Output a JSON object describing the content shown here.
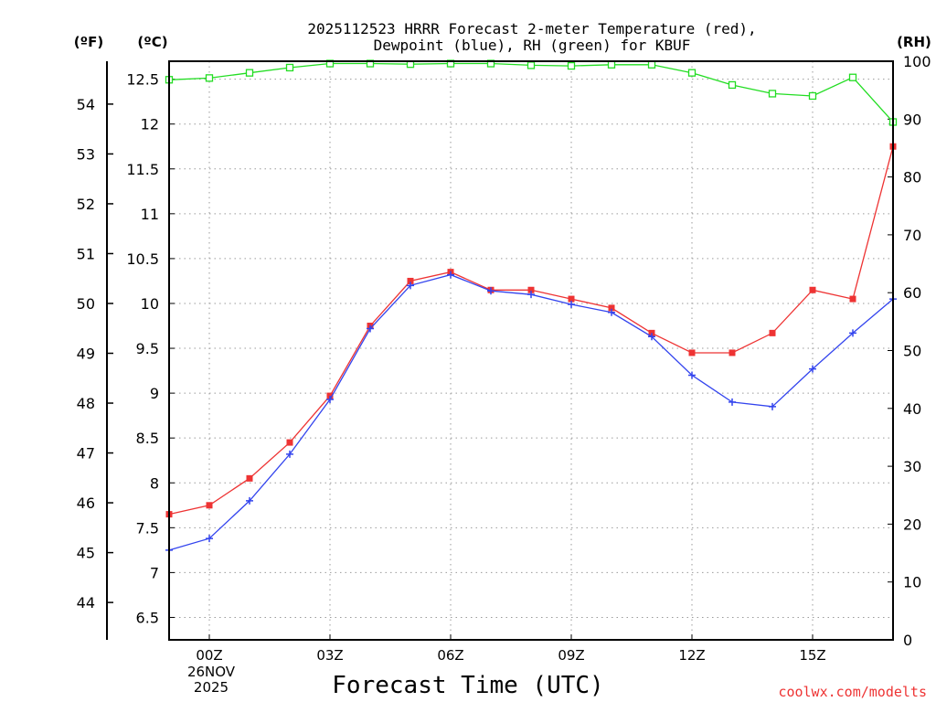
{
  "chart_data": {
    "type": "line",
    "title_line1": "2025112523 HRRR Forecast 2-meter Temperature (red),",
    "title_line2": "Dewpoint (blue), RH (green) for KBUF",
    "xlabel": "Forecast Time (UTC)",
    "left_unit_f": "(ºF)",
    "left_unit_c": "(ºC)",
    "right_unit": "(RH)",
    "watermark": "coolwx.com/modelts",
    "date_label_day": "26NOV",
    "date_label_year": "2025",
    "x_hours": [
      -1,
      0,
      1,
      2,
      3,
      4,
      5,
      6,
      7,
      8,
      9,
      10,
      11,
      12,
      13,
      14,
      15,
      16,
      17
    ],
    "x_range": [
      -1,
      17
    ],
    "x_ticks": [
      {
        "hour": 0,
        "label": "00Z"
      },
      {
        "hour": 3,
        "label": "03Z"
      },
      {
        "hour": 6,
        "label": "06Z"
      },
      {
        "hour": 9,
        "label": "09Z"
      },
      {
        "hour": 12,
        "label": "12Z"
      },
      {
        "hour": 15,
        "label": "15Z"
      }
    ],
    "celsius_range": [
      6.25,
      12.7
    ],
    "celsius_ticks": [
      "6.5",
      "7",
      "7.5",
      "8",
      "8.5",
      "9",
      "9.5",
      "10",
      "10.5",
      "11",
      "11.5",
      "12",
      "12.5"
    ],
    "fahrenheit_ticks": [
      "44",
      "45",
      "46",
      "47",
      "48",
      "49",
      "50",
      "51",
      "52",
      "53",
      "54"
    ],
    "rh_range": [
      0,
      100
    ],
    "rh_ticks": [
      "0",
      "10",
      "20",
      "30",
      "40",
      "50",
      "60",
      "70",
      "80",
      "90",
      "100"
    ],
    "series": [
      {
        "name": "Temperature",
        "unit": "C",
        "color": "#ee3333",
        "marker": "square",
        "values": [
          7.65,
          7.75,
          8.05,
          8.45,
          8.97,
          9.75,
          10.25,
          10.35,
          10.15,
          10.15,
          10.05,
          9.95,
          9.67,
          9.45,
          9.45,
          9.67,
          10.15,
          10.05,
          11.75
        ]
      },
      {
        "name": "Dewpoint",
        "unit": "C",
        "color": "#3344ee",
        "marker": "plus",
        "values": [
          7.25,
          7.38,
          7.8,
          8.32,
          8.93,
          9.72,
          10.2,
          10.32,
          10.14,
          10.1,
          9.99,
          9.9,
          9.63,
          9.2,
          8.9,
          8.85,
          9.27,
          9.67,
          10.05
        ]
      },
      {
        "name": "RH",
        "unit": "%",
        "color": "#22dd22",
        "marker": "open-square",
        "values": [
          96.8,
          97.1,
          98.0,
          98.9,
          99.6,
          99.6,
          99.5,
          99.6,
          99.6,
          99.3,
          99.2,
          99.4,
          99.4,
          98.0,
          95.9,
          94.4,
          94.0,
          97.2,
          89.5
        ]
      }
    ]
  }
}
